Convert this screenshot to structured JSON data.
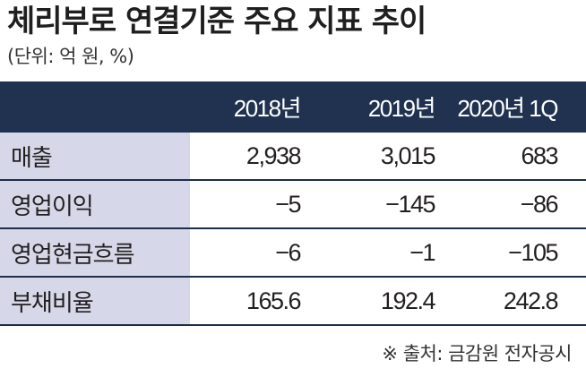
{
  "title": "체리부로 연결기준 주요 지표 추이",
  "unit": "(단위: 억 원, %)",
  "columns": [
    "2018년",
    "2019년",
    "2020년 1Q"
  ],
  "rows": [
    {
      "label": "매출",
      "values": [
        "2,938",
        "3,015",
        "683"
      ]
    },
    {
      "label": "영업이익",
      "values": [
        "−5",
        "−145",
        "−86"
      ]
    },
    {
      "label": "영업현금흐름",
      "values": [
        "−6",
        "−1",
        "−105"
      ]
    },
    {
      "label": "부채비율",
      "values": [
        "165.6",
        "192.4",
        "242.8"
      ]
    }
  ],
  "source": "※ 출처: 금감원 전자공시",
  "colors": {
    "header_bg": "#213250",
    "label_bg": "#d6d8ea",
    "rule": "#1f2d48"
  }
}
